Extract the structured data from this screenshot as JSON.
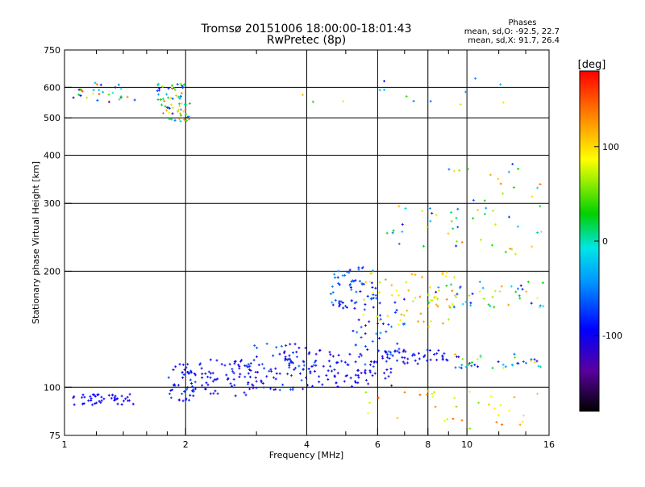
{
  "chart_data": {
    "type": "scatter",
    "title": "Tromsø 20151006 18:00:00-18:01:43",
    "subtitle": "RwPretec (8p)",
    "xlabel": "Frequency [MHz]",
    "ylabel": "Stationary phase Virtual Height [km]",
    "xscale": "log",
    "yscale": "log",
    "xlim": [
      1,
      16
    ],
    "ylim": [
      75,
      750
    ],
    "xticks": [
      1,
      2,
      4,
      6,
      8,
      10,
      16
    ],
    "xtick_labels": [
      "1",
      "2",
      "4",
      "6",
      "8",
      "10",
      "16"
    ],
    "yticks": [
      75,
      100,
      200,
      300,
      400,
      500,
      600,
      750
    ],
    "ytick_labels": [
      "75",
      "100",
      "200",
      "300",
      "400",
      "500",
      "600",
      "750"
    ],
    "grid": true,
    "stats": {
      "heading": "Phases",
      "line_o": "mean, sd,O: -92.5, 22.7",
      "line_x": "mean, sd,X:  91.7, 26.4"
    },
    "colorbar": {
      "label": "[deg]",
      "ticks": [
        100,
        0,
        -100
      ],
      "tick_labels": [
        "100",
        "0",
        "-100"
      ],
      "range": [
        -180,
        180
      ],
      "colormap": "rainbow"
    },
    "point_groups": [
      {
        "x": [
          1.05,
          1.5
        ],
        "y": [
          90,
          96
        ],
        "phase": [
          -110,
          -90
        ],
        "n": 45
      },
      {
        "x": [
          1.05,
          1.5
        ],
        "y": [
          550,
          620
        ],
        "phase": [
          -150,
          160
        ],
        "n": 28
      },
      {
        "x": [
          1.7,
          2.05
        ],
        "y": [
          490,
          620
        ],
        "phase": [
          -120,
          150
        ],
        "n": 70
      },
      {
        "x": [
          1.8,
          2.1
        ],
        "y": [
          92,
          115
        ],
        "phase": [
          -120,
          -60
        ],
        "n": 45
      },
      {
        "x": [
          2.1,
          3.0
        ],
        "y": [
          95,
          118
        ],
        "phase": [
          -120,
          -70
        ],
        "n": 70
      },
      {
        "x": [
          2.8,
          4.0
        ],
        "y": [
          98,
          130
        ],
        "phase": [
          -120,
          -60
        ],
        "n": 60
      },
      {
        "x": [
          3.5,
          6.0
        ],
        "y": [
          110,
          125
        ],
        "phase": [
          -120,
          -60
        ],
        "n": 60
      },
      {
        "x": [
          4.0,
          6.5
        ],
        "y": [
          100,
          112
        ],
        "phase": [
          -120,
          -80
        ],
        "n": 45
      },
      {
        "x": [
          4.5,
          6.0
        ],
        "y": [
          160,
          205
        ],
        "phase": [
          -110,
          -40
        ],
        "n": 60
      },
      {
        "x": [
          5.2,
          7.0
        ],
        "y": [
          120,
          170
        ],
        "phase": [
          -120,
          -40
        ],
        "n": 40
      },
      {
        "x": [
          6.0,
          9.0
        ],
        "y": [
          115,
          125
        ],
        "phase": [
          -120,
          -70
        ],
        "n": 50
      },
      {
        "x": [
          9.0,
          15.5
        ],
        "y": [
          112,
          122
        ],
        "phase": [
          -120,
          120
        ],
        "n": 40
      },
      {
        "x": [
          5.5,
          9.5
        ],
        "y": [
          140,
          200
        ],
        "phase": [
          60,
          140
        ],
        "n": 55
      },
      {
        "x": [
          8.0,
          15.5
        ],
        "y": [
          160,
          190
        ],
        "phase": [
          -120,
          130
        ],
        "n": 50
      },
      {
        "x": [
          9.0,
          15.5
        ],
        "y": [
          220,
          380
        ],
        "phase": [
          -100,
          140
        ],
        "n": 40
      },
      {
        "x": [
          5.5,
          15.5
        ],
        "y": [
          78,
          100
        ],
        "phase": [
          60,
          150
        ],
        "n": 35
      },
      {
        "x": [
          6.0,
          9.5
        ],
        "y": [
          230,
          300
        ],
        "phase": [
          -110,
          120
        ],
        "n": 20
      },
      {
        "x": [
          3.3,
          13
        ],
        "y": [
          540,
          640
        ],
        "phase": [
          -120,
          140
        ],
        "n": 14
      }
    ]
  }
}
